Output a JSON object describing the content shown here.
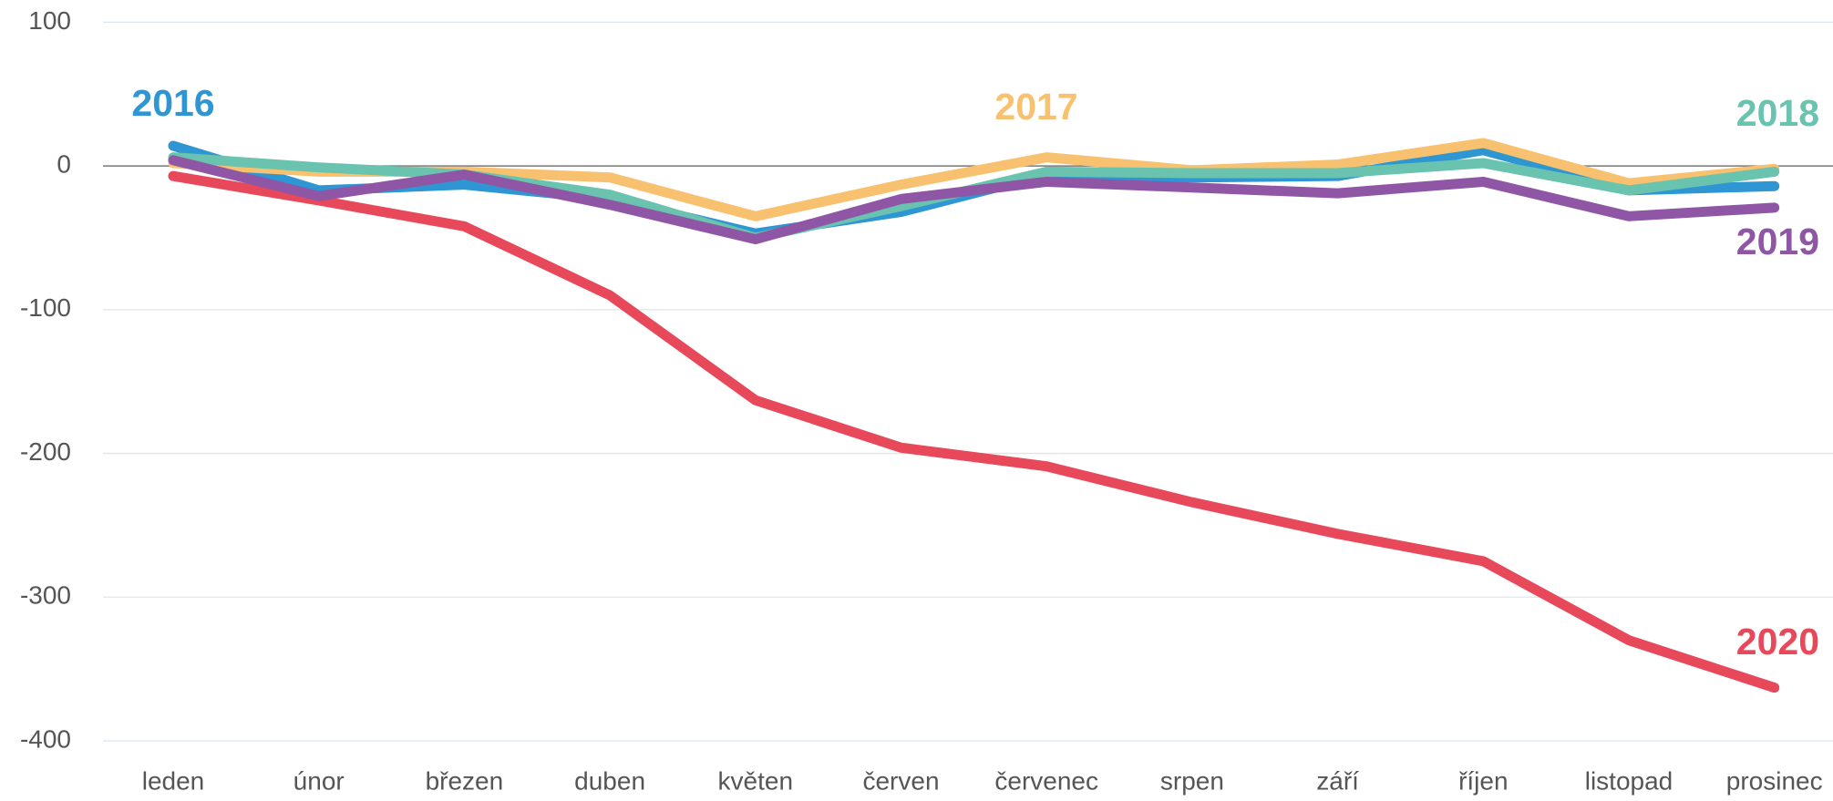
{
  "chart_data": {
    "type": "line",
    "categories": [
      "leden",
      "únor",
      "březen",
      "duben",
      "květen",
      "červen",
      "červenec",
      "srpen",
      "září",
      "říjen",
      "listopad",
      "prosinec"
    ],
    "series": [
      {
        "name": "2016",
        "color": "#2e96d3",
        "values": [
          14,
          -17,
          -13,
          -23,
          -47,
          -32,
          -6,
          -8,
          -7,
          11,
          -17,
          -14
        ]
      },
      {
        "name": "2017",
        "color": "#f8c170",
        "values": [
          2,
          -4,
          -4,
          -8,
          -35,
          -13,
          6,
          -3,
          1,
          16,
          -12,
          -2
        ]
      },
      {
        "name": "2018",
        "color": "#6ac3ae",
        "values": [
          6,
          -1,
          -6,
          -20,
          -50,
          -28,
          -4,
          -5,
          -5,
          2,
          -17,
          -4
        ]
      },
      {
        "name": "2019",
        "color": "#8e56a5",
        "values": [
          4,
          -21,
          -6,
          -27,
          -51,
          -23,
          -11,
          -15,
          -19,
          -11,
          -35,
          -29
        ]
      },
      {
        "name": "2020",
        "color": "#e8495a",
        "values": [
          -7,
          -24,
          -42,
          -90,
          -163,
          -196,
          -209,
          -234,
          -256,
          -275,
          -330,
          -363
        ]
      }
    ],
    "ylim": [
      -400,
      100
    ],
    "yticks": [
      100,
      0,
      -100,
      -200,
      -300,
      -400
    ],
    "grid": true
  }
}
